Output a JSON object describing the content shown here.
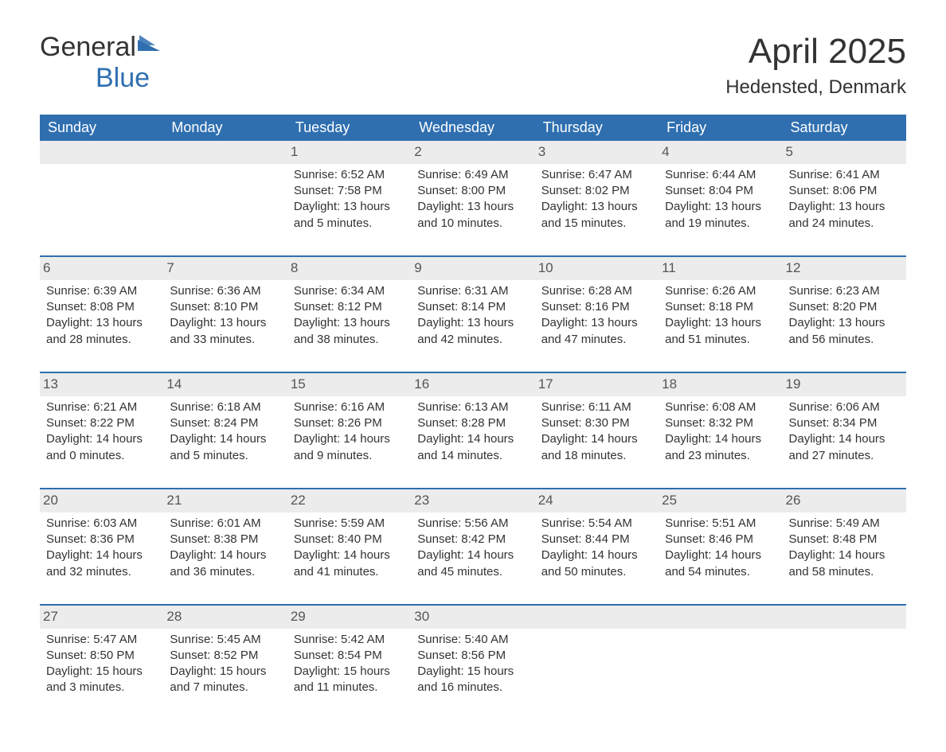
{
  "brand": {
    "line1": "General",
    "line2": "Blue",
    "text_color": "#333333",
    "accent_color": "#2f6fb0"
  },
  "title": {
    "month_year": "April 2025",
    "location": "Hedensted, Denmark",
    "month_fontsize": 44,
    "location_fontsize": 24
  },
  "calendar": {
    "header_bg": "#2f6fb0",
    "header_text_color": "#ffffff",
    "row_border_color": "#2f6fb0",
    "daynum_bg": "#ececec",
    "daynum_color": "#555555",
    "cell_text_color": "#333333",
    "background_color": "#ffffff",
    "days_of_week": [
      "Sunday",
      "Monday",
      "Tuesday",
      "Wednesday",
      "Thursday",
      "Friday",
      "Saturday"
    ],
    "weeks": [
      [
        null,
        null,
        {
          "n": "1",
          "sunrise": "6:52 AM",
          "sunset": "7:58 PM",
          "daylight": "13 hours and 5 minutes."
        },
        {
          "n": "2",
          "sunrise": "6:49 AM",
          "sunset": "8:00 PM",
          "daylight": "13 hours and 10 minutes."
        },
        {
          "n": "3",
          "sunrise": "6:47 AM",
          "sunset": "8:02 PM",
          "daylight": "13 hours and 15 minutes."
        },
        {
          "n": "4",
          "sunrise": "6:44 AM",
          "sunset": "8:04 PM",
          "daylight": "13 hours and 19 minutes."
        },
        {
          "n": "5",
          "sunrise": "6:41 AM",
          "sunset": "8:06 PM",
          "daylight": "13 hours and 24 minutes."
        }
      ],
      [
        {
          "n": "6",
          "sunrise": "6:39 AM",
          "sunset": "8:08 PM",
          "daylight": "13 hours and 28 minutes."
        },
        {
          "n": "7",
          "sunrise": "6:36 AM",
          "sunset": "8:10 PM",
          "daylight": "13 hours and 33 minutes."
        },
        {
          "n": "8",
          "sunrise": "6:34 AM",
          "sunset": "8:12 PM",
          "daylight": "13 hours and 38 minutes."
        },
        {
          "n": "9",
          "sunrise": "6:31 AM",
          "sunset": "8:14 PM",
          "daylight": "13 hours and 42 minutes."
        },
        {
          "n": "10",
          "sunrise": "6:28 AM",
          "sunset": "8:16 PM",
          "daylight": "13 hours and 47 minutes."
        },
        {
          "n": "11",
          "sunrise": "6:26 AM",
          "sunset": "8:18 PM",
          "daylight": "13 hours and 51 minutes."
        },
        {
          "n": "12",
          "sunrise": "6:23 AM",
          "sunset": "8:20 PM",
          "daylight": "13 hours and 56 minutes."
        }
      ],
      [
        {
          "n": "13",
          "sunrise": "6:21 AM",
          "sunset": "8:22 PM",
          "daylight": "14 hours and 0 minutes."
        },
        {
          "n": "14",
          "sunrise": "6:18 AM",
          "sunset": "8:24 PM",
          "daylight": "14 hours and 5 minutes."
        },
        {
          "n": "15",
          "sunrise": "6:16 AM",
          "sunset": "8:26 PM",
          "daylight": "14 hours and 9 minutes."
        },
        {
          "n": "16",
          "sunrise": "6:13 AM",
          "sunset": "8:28 PM",
          "daylight": "14 hours and 14 minutes."
        },
        {
          "n": "17",
          "sunrise": "6:11 AM",
          "sunset": "8:30 PM",
          "daylight": "14 hours and 18 minutes."
        },
        {
          "n": "18",
          "sunrise": "6:08 AM",
          "sunset": "8:32 PM",
          "daylight": "14 hours and 23 minutes."
        },
        {
          "n": "19",
          "sunrise": "6:06 AM",
          "sunset": "8:34 PM",
          "daylight": "14 hours and 27 minutes."
        }
      ],
      [
        {
          "n": "20",
          "sunrise": "6:03 AM",
          "sunset": "8:36 PM",
          "daylight": "14 hours and 32 minutes."
        },
        {
          "n": "21",
          "sunrise": "6:01 AM",
          "sunset": "8:38 PM",
          "daylight": "14 hours and 36 minutes."
        },
        {
          "n": "22",
          "sunrise": "5:59 AM",
          "sunset": "8:40 PM",
          "daylight": "14 hours and 41 minutes."
        },
        {
          "n": "23",
          "sunrise": "5:56 AM",
          "sunset": "8:42 PM",
          "daylight": "14 hours and 45 minutes."
        },
        {
          "n": "24",
          "sunrise": "5:54 AM",
          "sunset": "8:44 PM",
          "daylight": "14 hours and 50 minutes."
        },
        {
          "n": "25",
          "sunrise": "5:51 AM",
          "sunset": "8:46 PM",
          "daylight": "14 hours and 54 minutes."
        },
        {
          "n": "26",
          "sunrise": "5:49 AM",
          "sunset": "8:48 PM",
          "daylight": "14 hours and 58 minutes."
        }
      ],
      [
        {
          "n": "27",
          "sunrise": "5:47 AM",
          "sunset": "8:50 PM",
          "daylight": "15 hours and 3 minutes."
        },
        {
          "n": "28",
          "sunrise": "5:45 AM",
          "sunset": "8:52 PM",
          "daylight": "15 hours and 7 minutes."
        },
        {
          "n": "29",
          "sunrise": "5:42 AM",
          "sunset": "8:54 PM",
          "daylight": "15 hours and 11 minutes."
        },
        {
          "n": "30",
          "sunrise": "5:40 AM",
          "sunset": "8:56 PM",
          "daylight": "15 hours and 16 minutes."
        },
        null,
        null,
        null
      ]
    ],
    "labels": {
      "sunrise_prefix": "Sunrise: ",
      "sunset_prefix": "Sunset: ",
      "daylight_prefix": "Daylight: "
    }
  }
}
